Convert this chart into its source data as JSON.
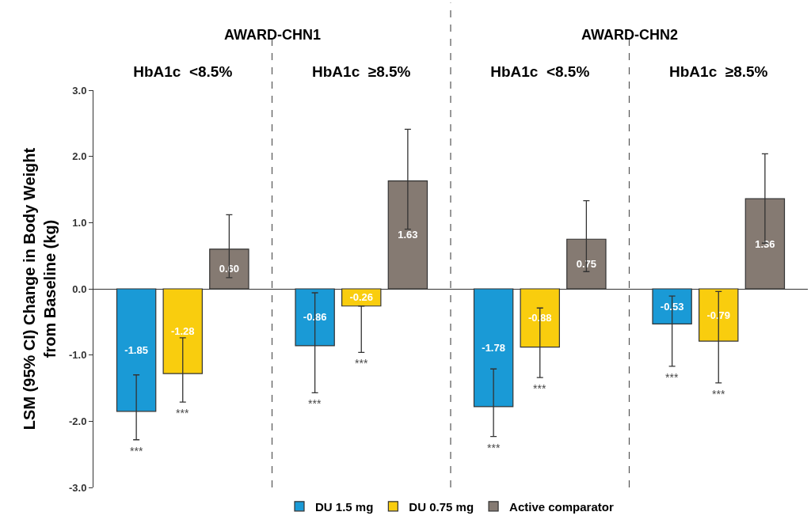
{
  "chart_data": {
    "type": "bar",
    "ylabel": "LSM (95% CI) Change in Body Weight\nfrom Baseline (kg)",
    "categories": [
      "HbA1c  <8.5%",
      "HbA1c  ≥8.5%",
      "HbA1c  <8.5%",
      "HbA1c  ≥8.5%"
    ],
    "series": [
      {
        "name": "DU 1.5 mg",
        "color": "#1a9ad6",
        "values": [
          -1.85,
          -0.86,
          -1.78,
          -0.53
        ],
        "value_labels": [
          "-1.85",
          "-0.86",
          "-1.78",
          "-0.53"
        ],
        "errors": [
          [
            -2.28,
            -1.3
          ],
          [
            -1.57,
            -0.06
          ],
          [
            -2.23,
            -1.21
          ],
          [
            -1.17,
            -0.11
          ]
        ]
      },
      {
        "name": "DU 0.75 mg",
        "color": "#f9cd0e",
        "values": [
          -1.28,
          -0.26,
          -0.88,
          -0.79
        ],
        "value_labels": [
          "-1.28",
          "-0.26",
          "-0.88",
          "-0.79"
        ],
        "errors": [
          [
            -1.71,
            -0.74
          ],
          [
            -0.96,
            -0.26
          ],
          [
            -1.34,
            -0.29
          ],
          [
            -1.42,
            -0.04
          ]
        ]
      },
      {
        "name": "Active comparator",
        "color": "#857a72",
        "values": [
          0.6,
          1.63,
          0.75,
          1.36
        ],
        "value_labels": [
          "0.60",
          "1.63",
          "0.75",
          "1.36"
        ],
        "errors": [
          [
            0.17,
            1.12
          ],
          [
            0.9,
            2.41
          ],
          [
            0.26,
            1.33
          ],
          [
            0.69,
            2.04
          ]
        ]
      }
    ],
    "ylim": [
      -3,
      3
    ],
    "yticks": [
      {
        "value": -3,
        "label": "-3.0"
      },
      {
        "value": -2,
        "label": "-2.0"
      },
      {
        "value": -1,
        "label": "-1.0"
      },
      {
        "value": 0,
        "label": "0.0"
      },
      {
        "value": 1,
        "label": "1.0"
      },
      {
        "value": 2,
        "label": "2.0"
      },
      {
        "value": 3,
        "label": "3.0"
      }
    ],
    "annotations": [
      "AWARD-CHN1",
      "AWARD-CHN2",
      "***",
      "***",
      "***",
      "***",
      "***",
      "***",
      "***",
      "***"
    ],
    "grid": false,
    "legend": "bottom"
  }
}
